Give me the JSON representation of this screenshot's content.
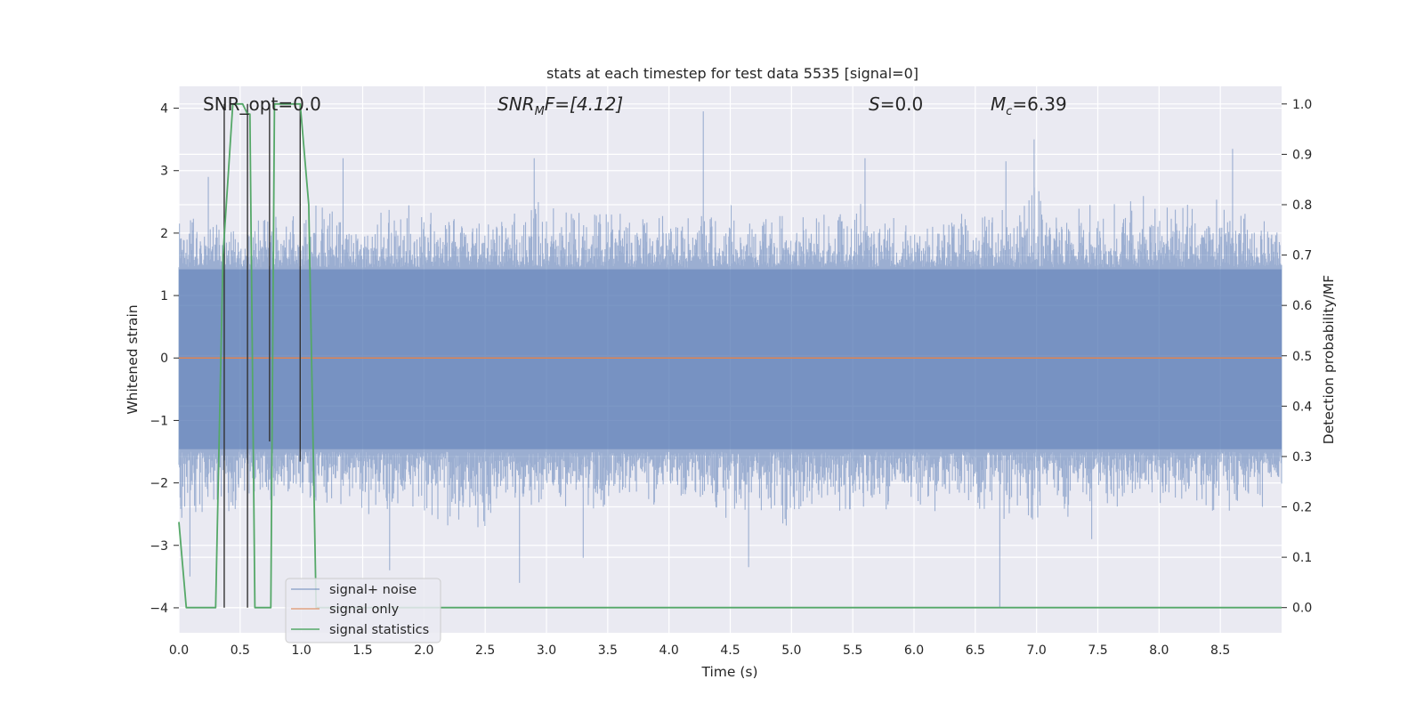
{
  "chart_data": {
    "type": "line",
    "title": "stats at each timestep for test data 5535 [signal=0]",
    "xlabel": "Time (s)",
    "ylabel": "Whitened strain",
    "ylabel_right": "Detection probability/MF",
    "xlim": [
      0,
      9
    ],
    "ylim": [
      -4.4,
      4.35
    ],
    "ylim_right": [
      -0.05,
      1.035
    ],
    "x_ticks": [
      0.0,
      0.5,
      1.0,
      1.5,
      2.0,
      2.5,
      3.0,
      3.5,
      4.0,
      4.5,
      5.0,
      5.5,
      6.0,
      6.5,
      7.0,
      7.5,
      8.0,
      8.5
    ],
    "x_tick_labels": [
      "0.0",
      "0.5",
      "1.0",
      "1.5",
      "2.0",
      "2.5",
      "3.0",
      "3.5",
      "4.0",
      "4.5",
      "5.0",
      "5.5",
      "6.0",
      "6.5",
      "7.0",
      "7.5",
      "8.0",
      "8.5"
    ],
    "y_ticks": [
      -4,
      -3,
      -2,
      -1,
      0,
      1,
      2,
      3,
      4
    ],
    "y_tick_labels": [
      "−4",
      "−3",
      "−2",
      "−1",
      "0",
      "1",
      "2",
      "3",
      "4"
    ],
    "y_right_ticks": [
      0.0,
      0.1,
      0.2,
      0.3,
      0.4,
      0.5,
      0.6,
      0.7,
      0.8,
      0.9,
      1.0
    ],
    "y_right_tick_labels": [
      "0.0",
      "0.1",
      "0.2",
      "0.3",
      "0.4",
      "0.5",
      "0.6",
      "0.7",
      "0.8",
      "0.9",
      "1.0"
    ],
    "grid": true,
    "legend_position": "lower-left",
    "annotations": {
      "snr_opt": "SNR_opt=0.0",
      "snr_mf_main": "SNR",
      "snr_mf_sub": "M",
      "snr_mf_tail": "F=[4.12]",
      "s_label": "S",
      "s_value": "=0.0",
      "mc_main": "M",
      "mc_sub": "c",
      "mc_value": "=6.39"
    },
    "series": [
      {
        "name": "signal+ noise",
        "color": "#4c72b0",
        "envelope": {
          "x": [
            0.0,
            0.5,
            1.0,
            1.5,
            2.0,
            2.5,
            3.0,
            3.5,
            4.0,
            4.5,
            5.0,
            5.5,
            6.0,
            6.5,
            7.0,
            7.5,
            8.0,
            8.5,
            9.0
          ],
          "upper": [
            2.3,
            2.3,
            2.6,
            2.4,
            2.5,
            2.4,
            2.6,
            2.5,
            2.4,
            2.6,
            2.3,
            2.5,
            2.3,
            2.4,
            2.9,
            2.5,
            2.7,
            2.6,
            2.2
          ],
          "lower": [
            -2.6,
            -2.7,
            -2.4,
            -2.5,
            -2.7,
            -3.0,
            -2.5,
            -2.6,
            -2.4,
            -2.6,
            -2.8,
            -2.5,
            -2.6,
            -2.6,
            -2.8,
            -2.5,
            -2.4,
            -2.7,
            -2.3
          ]
        },
        "spikes": [
          {
            "x": 0.09,
            "y": -3.5
          },
          {
            "x": 0.24,
            "y": 2.9
          },
          {
            "x": 1.34,
            "y": 3.2
          },
          {
            "x": 1.72,
            "y": -3.4
          },
          {
            "x": 2.78,
            "y": -3.6
          },
          {
            "x": 2.9,
            "y": 3.2
          },
          {
            "x": 4.28,
            "y": 3.95
          },
          {
            "x": 4.65,
            "y": -3.35
          },
          {
            "x": 5.6,
            "y": 3.2
          },
          {
            "x": 6.7,
            "y": -4.0
          },
          {
            "x": 6.75,
            "y": 3.15
          },
          {
            "x": 6.98,
            "y": 3.5
          },
          {
            "x": 8.6,
            "y": 3.35
          },
          {
            "x": 7.45,
            "y": -2.9
          },
          {
            "x": 3.3,
            "y": -3.2
          }
        ]
      },
      {
        "name": "signal only",
        "color": "#dd8452",
        "x": [
          0.0,
          9.0
        ],
        "y": [
          0.0,
          0.0
        ]
      },
      {
        "name": "signal statistics",
        "color": "#55a868",
        "axis": "right",
        "x": [
          0.0,
          0.06,
          0.1,
          0.3,
          0.36,
          0.44,
          0.52,
          0.56,
          0.58,
          0.62,
          0.75,
          0.78,
          0.99,
          1.06,
          1.12,
          9.0
        ],
        "y": [
          0.17,
          0.0,
          0.0,
          0.0,
          0.7,
          1.0,
          1.0,
          0.98,
          0.98,
          0.0,
          0.0,
          1.0,
          1.0,
          0.8,
          0.0,
          0.0
        ]
      }
    ],
    "detection_markers": {
      "color": "#333333",
      "x": [
        0.37,
        0.56,
        0.74,
        0.99
      ],
      "y_top": [
        1.0,
        1.0,
        1.0,
        1.0
      ],
      "y_bottom": [
        0.0,
        0.0,
        0.33,
        0.29
      ]
    },
    "colors": {
      "plot_background": "#eaeaf2",
      "grid": "#ffffff",
      "legend_background": "#eaeaf2",
      "legend_border": "#cccccc"
    }
  }
}
